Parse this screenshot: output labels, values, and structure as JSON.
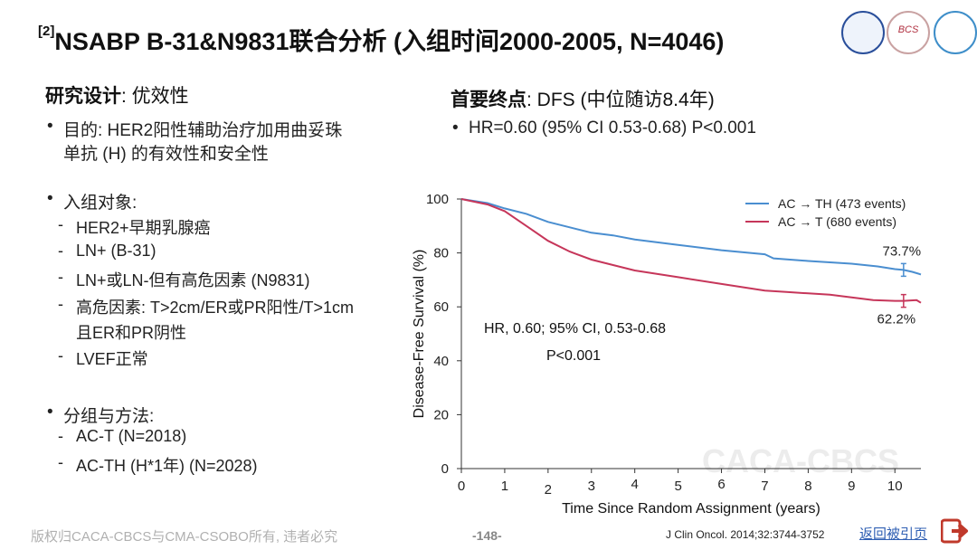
{
  "title": {
    "sup": "[2]",
    "text": "NSABP B-31&N9831联合分析 (入组时间2000-2005, N=4046)"
  },
  "logos": {
    "logo2_text": "BCS"
  },
  "left": {
    "design_label": "研究设计",
    "design_value": ": 优效性",
    "purpose_line1": "目的: HER2阳性辅助治疗加用曲妥珠",
    "purpose_line2": "单抗 (H) 的有效性和安全性",
    "population_header": "入组对象:",
    "population_items": [
      "HER2+早期乳腺癌",
      "LN+ (B-31)",
      "LN+或LN-但有高危因素 (N9831)",
      "高危因素: T>2cm/ER或PR阳性/T>1cm",
      "且ER和PR阴性",
      "LVEF正常"
    ],
    "groups_header": "分组与方法:",
    "groups_items": [
      "AC-T (N=2018)",
      "AC-TH (H*1年) (N=2028)"
    ],
    "bullet": "•",
    "dash": "-"
  },
  "right": {
    "endpoint_label": "首要终点",
    "endpoint_value": ": DFS (中位随访8.4年)",
    "hr_line": "HR=0.60 (95% CI 0.53-0.68) P<0.001"
  },
  "chart_data": {
    "type": "line",
    "xlabel": "Time Since Random Assignment (years)",
    "ylabel": "Disease-Free Survival (%)",
    "xlim": [
      0,
      10.6
    ],
    "ylim": [
      0,
      100
    ],
    "xticks": [
      0,
      1,
      2,
      3,
      4,
      5,
      6,
      7,
      8,
      9,
      10
    ],
    "yticks": [
      0,
      20,
      40,
      60,
      80,
      100
    ],
    "legend_position": "top-right",
    "series": [
      {
        "name": "AC → TH (473 events)",
        "color": "#4a8ed0",
        "x": [
          0,
          0.6,
          1,
          1.5,
          2,
          2.5,
          3,
          3.5,
          4,
          5,
          6,
          7,
          7.2,
          8,
          9,
          9.6,
          10,
          10.2,
          10.4,
          10.6
        ],
        "y": [
          100,
          98.5,
          96.5,
          94.5,
          91.5,
          89.5,
          87.5,
          86.5,
          85,
          83,
          81,
          79.5,
          78,
          77,
          76,
          75,
          74,
          73.7,
          73,
          72
        ]
      },
      {
        "name": "AC → T (680 events)",
        "color": "#c6365a",
        "x": [
          0,
          0.6,
          1,
          1.5,
          2,
          2.5,
          3,
          3.5,
          4,
          5,
          6,
          7,
          7.5,
          8,
          8.5,
          9,
          9.5,
          10,
          10.2,
          10.5,
          10.6
        ],
        "y": [
          100,
          98,
          95.5,
          90,
          84.5,
          80.5,
          77.5,
          75.5,
          73.5,
          71,
          68.5,
          66,
          65.5,
          65,
          64.5,
          63.5,
          62.5,
          62.2,
          62.2,
          62.5,
          61.5
        ]
      }
    ],
    "end_labels": [
      {
        "text": "73.7%",
        "x": 10.2,
        "y": 73.7
      },
      {
        "text": "62.2%",
        "x": 10.2,
        "y": 62.2
      }
    ],
    "annotations": [
      "HR, 0.60; 95% CI, 0.53-0.68",
      "P<0.001"
    ],
    "watermark": "CACA-CBCS"
  },
  "footer": {
    "copyright": "版权归CACA-CBCS与CMA-CSOBO所有, 违者必究",
    "page": "-148-",
    "citation": "J Clin Oncol. 2014;32:3744-3752",
    "back_link": "返回被引页"
  }
}
